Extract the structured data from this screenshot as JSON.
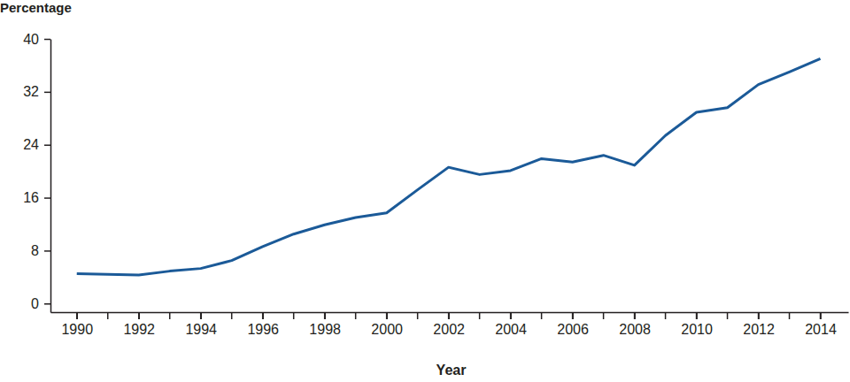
{
  "chart_data": {
    "type": "line",
    "y_label": "Percentage",
    "x_label": "Year",
    "x": [
      1990,
      1991,
      1992,
      1993,
      1994,
      1995,
      1996,
      1997,
      1998,
      1999,
      2000,
      2001,
      2002,
      2003,
      2004,
      2005,
      2006,
      2007,
      2008,
      2009,
      2010,
      2011,
      2012,
      2013,
      2014
    ],
    "values": [
      4.5,
      4.4,
      4.3,
      4.9,
      5.3,
      6.5,
      8.6,
      10.5,
      11.9,
      13.0,
      13.7,
      17.2,
      20.6,
      19.5,
      20.1,
      21.9,
      21.4,
      22.4,
      20.9,
      25.4,
      28.9,
      29.6,
      33.1,
      35.0,
      37.0
    ],
    "color": "#1b5a98",
    "xlim": [
      1989.15,
      2014.9
    ],
    "xticks": [
      1990,
      1992,
      1994,
      1996,
      1998,
      2000,
      2002,
      2004,
      2006,
      2008,
      2010,
      2012,
      2014
    ],
    "ylim": [
      -1.3,
      40
    ],
    "yticks": [
      0,
      8,
      16,
      24,
      32,
      40
    ],
    "grid": false
  }
}
